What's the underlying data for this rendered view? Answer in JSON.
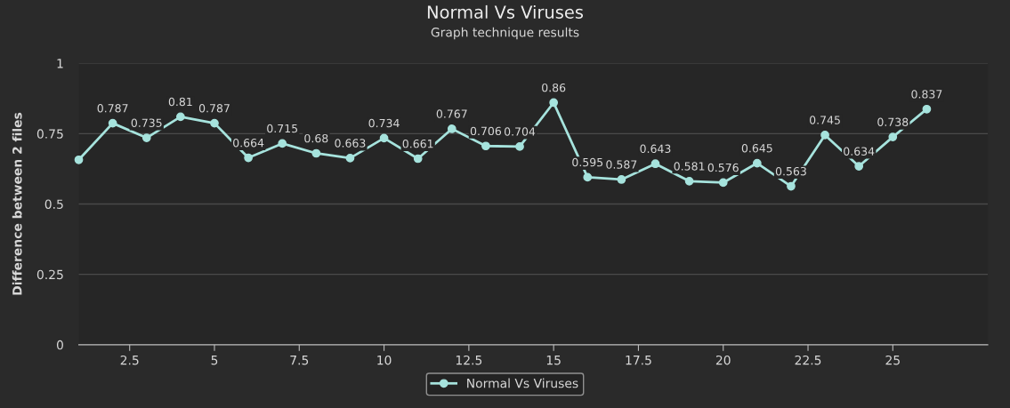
{
  "chart_data": {
    "type": "line",
    "title": "Normal Vs Viruses",
    "subtitle": "Graph technique results",
    "ylabel": "Difference between 2 files",
    "x": [
      1,
      2,
      3,
      4,
      5,
      6,
      7,
      8,
      9,
      10,
      11,
      12,
      13,
      14,
      15,
      16,
      17,
      18,
      19,
      20,
      21,
      22,
      23,
      24,
      25,
      26
    ],
    "series": [
      {
        "name": "Normal Vs Viruses",
        "color": "#a6e3dd",
        "values": [
          0.657,
          0.787,
          0.735,
          0.81,
          0.787,
          0.664,
          0.715,
          0.68,
          0.663,
          0.734,
          0.661,
          0.767,
          0.706,
          0.704,
          0.86,
          0.595,
          0.587,
          0.643,
          0.581,
          0.576,
          0.645,
          0.563,
          0.745,
          0.634,
          0.738,
          0.837
        ],
        "value_labels": [
          null,
          "0.787",
          "0.735",
          "0.81",
          "0.787",
          "0.664",
          "0.715",
          "0.68",
          "0.663",
          "0.734",
          "0.661",
          "0.767",
          "0.706",
          "0.704",
          "0.86",
          "0.595",
          "0.587",
          "0.643",
          "0.581",
          "0.576",
          "0.645",
          "0.563",
          "0.745",
          "0.634",
          "0.738",
          "0.837"
        ]
      }
    ],
    "xlim": [
      1,
      27.8
    ],
    "xticks": [
      {
        "value": 2.5,
        "label": "2.5"
      },
      5,
      {
        "value": 7.5,
        "label": "7.5"
      },
      10,
      {
        "value": 12.5,
        "label": "12.5"
      },
      15,
      {
        "value": 17.5,
        "label": "17.5"
      },
      20,
      {
        "value": 22.5,
        "label": "22.5"
      },
      25
    ],
    "ylim": [
      0,
      1
    ],
    "yticks": [
      0,
      0.25,
      0.5,
      0.75,
      1
    ],
    "grid": "y",
    "legend": "bottom",
    "marker": "circle",
    "line_style": "solid"
  }
}
